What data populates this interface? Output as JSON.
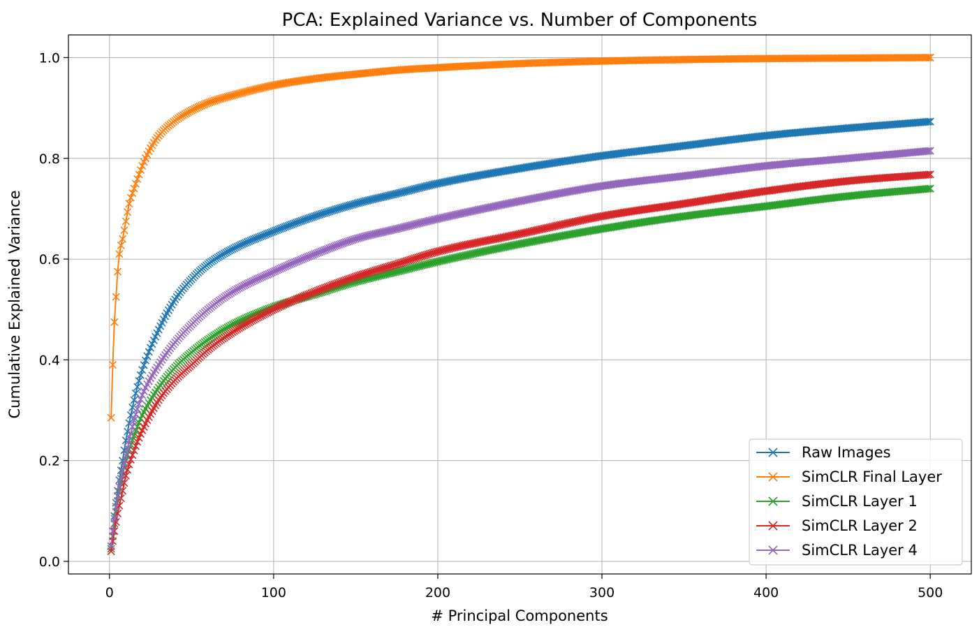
{
  "chart_data": {
    "type": "line",
    "title": "PCA: Explained Variance vs. Number of Components",
    "xlabel": "# Principal Components",
    "ylabel": "Cumulative Explained Variance",
    "xlim": [
      -25,
      525
    ],
    "ylim": [
      -0.025,
      1.045
    ],
    "xticks": [
      0,
      100,
      200,
      300,
      400,
      500
    ],
    "yticks": [
      0.0,
      0.2,
      0.4,
      0.6,
      0.8,
      1.0
    ],
    "xtick_labels": [
      "0",
      "100",
      "200",
      "300",
      "400",
      "500"
    ],
    "ytick_labels": [
      "0.0",
      "0.2",
      "0.4",
      "0.6",
      "0.8",
      "1.0"
    ],
    "grid": true,
    "legend_position": "lower-right",
    "marker": "x",
    "series": [
      {
        "name": "Raw Images",
        "color": "#1f77b4",
        "x": [
          1,
          2,
          3,
          5,
          8,
          10,
          15,
          20,
          30,
          40,
          50,
          60,
          75,
          100,
          125,
          150,
          175,
          200,
          250,
          300,
          350,
          400,
          450,
          500
        ],
        "values": [
          0.03,
          0.06,
          0.09,
          0.14,
          0.2,
          0.24,
          0.32,
          0.38,
          0.46,
          0.52,
          0.56,
          0.59,
          0.62,
          0.655,
          0.685,
          0.71,
          0.73,
          0.75,
          0.78,
          0.805,
          0.825,
          0.845,
          0.86,
          0.873
        ]
      },
      {
        "name": "SimCLR Final Layer",
        "color": "#ff7f0e",
        "x": [
          1,
          2,
          3,
          4,
          5,
          6,
          8,
          10,
          12,
          15,
          20,
          25,
          30,
          40,
          50,
          60,
          75,
          100,
          125,
          150,
          175,
          200,
          250,
          300,
          350,
          400,
          450,
          500
        ],
        "values": [
          0.285,
          0.39,
          0.475,
          0.525,
          0.575,
          0.61,
          0.64,
          0.675,
          0.71,
          0.74,
          0.785,
          0.82,
          0.845,
          0.875,
          0.895,
          0.91,
          0.925,
          0.945,
          0.958,
          0.967,
          0.975,
          0.98,
          0.988,
          0.993,
          0.996,
          0.998,
          0.999,
          1.0
        ]
      },
      {
        "name": "SimCLR Layer 1",
        "color": "#2ca02c",
        "x": [
          1,
          2,
          3,
          5,
          8,
          10,
          15,
          20,
          30,
          40,
          50,
          60,
          75,
          100,
          125,
          150,
          175,
          200,
          250,
          300,
          350,
          400,
          450,
          500
        ],
        "values": [
          0.025,
          0.05,
          0.075,
          0.12,
          0.17,
          0.2,
          0.25,
          0.29,
          0.345,
          0.385,
          0.415,
          0.44,
          0.47,
          0.505,
          0.53,
          0.555,
          0.575,
          0.595,
          0.63,
          0.66,
          0.685,
          0.705,
          0.725,
          0.74
        ]
      },
      {
        "name": "SimCLR Layer 2",
        "color": "#d62728",
        "x": [
          1,
          2,
          3,
          5,
          8,
          10,
          15,
          20,
          30,
          40,
          50,
          60,
          75,
          100,
          125,
          150,
          175,
          200,
          250,
          300,
          350,
          400,
          450,
          500
        ],
        "values": [
          0.02,
          0.04,
          0.06,
          0.095,
          0.14,
          0.17,
          0.22,
          0.26,
          0.32,
          0.36,
          0.39,
          0.42,
          0.455,
          0.5,
          0.535,
          0.565,
          0.59,
          0.615,
          0.65,
          0.685,
          0.71,
          0.735,
          0.755,
          0.768
        ]
      },
      {
        "name": "SimCLR Layer 4",
        "color": "#9467bd",
        "x": [
          1,
          2,
          3,
          5,
          8,
          10,
          15,
          20,
          30,
          40,
          50,
          60,
          75,
          100,
          125,
          150,
          175,
          200,
          250,
          300,
          350,
          400,
          450,
          500
        ],
        "values": [
          0.03,
          0.06,
          0.085,
          0.13,
          0.18,
          0.21,
          0.28,
          0.33,
          0.39,
          0.435,
          0.47,
          0.5,
          0.535,
          0.575,
          0.61,
          0.64,
          0.66,
          0.68,
          0.715,
          0.745,
          0.765,
          0.785,
          0.8,
          0.815
        ]
      }
    ]
  }
}
